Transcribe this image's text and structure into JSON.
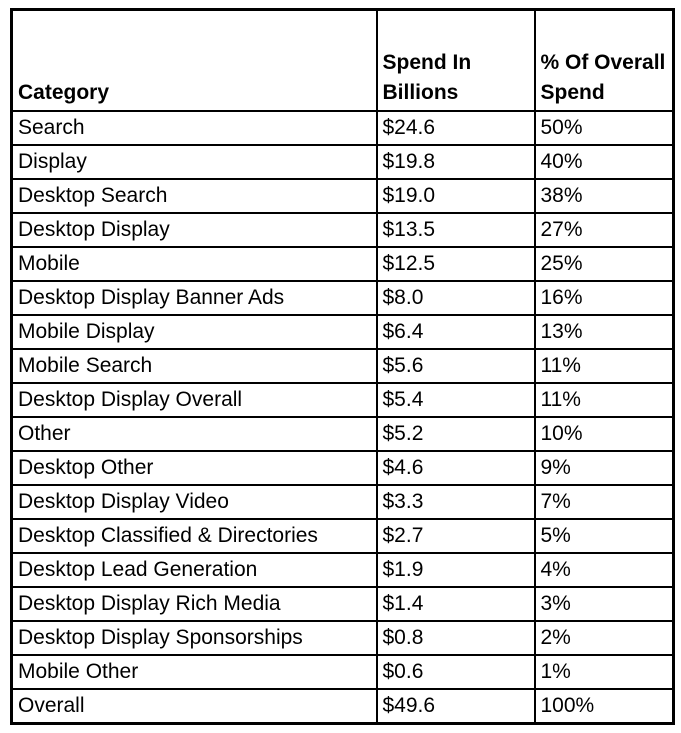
{
  "colors": {
    "border": "#000000",
    "background": "#ffffff",
    "text": "#000000"
  },
  "chart_data": {
    "type": "table",
    "columns": [
      "Category",
      "Spend In Billions",
      "% Of Overall Spend"
    ],
    "rows": [
      [
        "Search",
        "$24.6",
        "50%"
      ],
      [
        "Display",
        "$19.8",
        "40%"
      ],
      [
        "Desktop Search",
        "$19.0",
        "38%"
      ],
      [
        "Desktop Display",
        "$13.5",
        "27%"
      ],
      [
        "Mobile",
        "$12.5",
        "25%"
      ],
      [
        "Desktop Display Banner Ads",
        "$8.0",
        "16%"
      ],
      [
        "Mobile Display",
        "$6.4",
        "13%"
      ],
      [
        "Mobile Search",
        "$5.6",
        "11%"
      ],
      [
        "Desktop Display Overall",
        "$5.4",
        "11%"
      ],
      [
        "Other",
        "$5.2",
        "10%"
      ],
      [
        "Desktop Other",
        "$4.6",
        "9%"
      ],
      [
        "Desktop Display Video",
        "$3.3",
        "7%"
      ],
      [
        "Desktop Classified & Directories",
        "$2.7",
        "5%"
      ],
      [
        "Desktop Lead Generation",
        "$1.9",
        "4%"
      ],
      [
        "Desktop Display Rich Media",
        "$1.4",
        "3%"
      ],
      [
        "Desktop Display Sponsorships",
        "$0.8",
        "2%"
      ],
      [
        "Mobile Other",
        "$0.6",
        "1%"
      ],
      [
        "Overall",
        "$49.6",
        "100%"
      ]
    ]
  }
}
